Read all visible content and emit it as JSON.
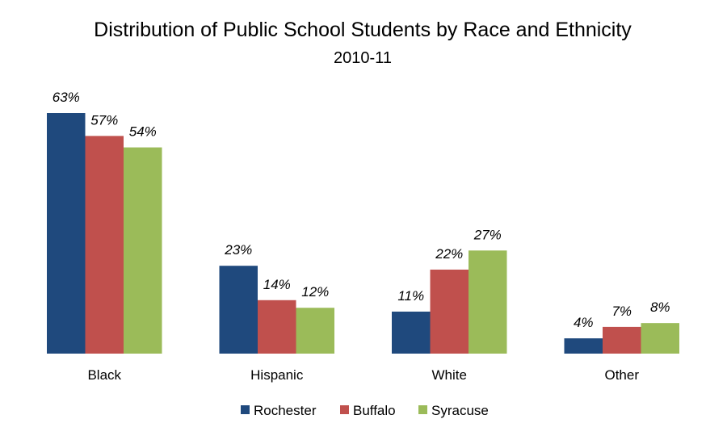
{
  "chart_data": {
    "type": "bar",
    "title": "Distribution of Public School Students by Race and Ethnicity",
    "subtitle": "2010-11",
    "xlabel": "",
    "ylabel": "",
    "categories": [
      "Black",
      "Hispanic",
      "White",
      "Other"
    ],
    "series": [
      {
        "name": "Rochester",
        "color": "#1F497D",
        "values": [
          63,
          23,
          11,
          4
        ],
        "labels": [
          "63%",
          "23%",
          "11%",
          "4%"
        ]
      },
      {
        "name": "Buffalo",
        "color": "#C0504D",
        "values": [
          57,
          14,
          22,
          7
        ],
        "labels": [
          "57%",
          "14%",
          "22%",
          "7%"
        ]
      },
      {
        "name": "Syracuse",
        "color": "#9BBB59",
        "values": [
          54,
          12,
          27,
          8
        ],
        "labels": [
          "54%",
          "12%",
          "27%",
          "8%"
        ]
      }
    ],
    "ylim": [
      0,
      63
    ],
    "grid": false,
    "legend_position": "bottom"
  }
}
